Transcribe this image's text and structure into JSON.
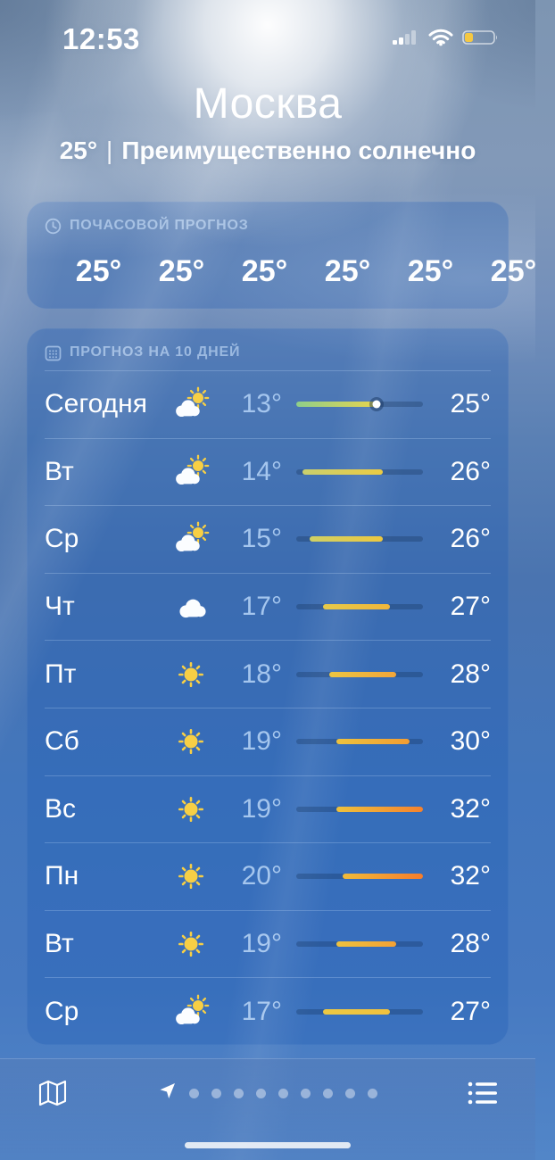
{
  "status_bar": {
    "time": "12:53",
    "signal_bars_total": 4,
    "signal_bars_active": 2,
    "battery_percent": 30,
    "battery_color": "#f5c842"
  },
  "header": {
    "city": "Москва",
    "current_temp": "25°",
    "separator": "|",
    "condition": "Преимущественно солнечно"
  },
  "hourly_card": {
    "icon": "clock-icon",
    "title": "ПОЧАСОВОЙ ПРОГНОЗ",
    "temps": [
      "25°",
      "25°",
      "25°",
      "25°",
      "25°",
      "25°"
    ]
  },
  "daily_card": {
    "icon": "calendar-icon",
    "title": "ПРОГНОЗ НА 10 ДНЕЙ",
    "scale": {
      "min": 13,
      "max": 32
    },
    "days": [
      {
        "label": "Сегодня",
        "icon": "partly-cloudy-icon",
        "low": 13,
        "high": 25,
        "low_label": "13°",
        "high_label": "25°",
        "bar": [
          "#8fcf8a",
          "#e6d44f"
        ],
        "current_temp": 25
      },
      {
        "label": "Вт",
        "icon": "partly-cloudy-icon",
        "low": 14,
        "high": 26,
        "low_label": "14°",
        "high_label": "26°",
        "bar": [
          "#c9cf6e",
          "#eccb43"
        ]
      },
      {
        "label": "Ср",
        "icon": "partly-cloudy-icon",
        "low": 15,
        "high": 26,
        "low_label": "15°",
        "high_label": "26°",
        "bar": [
          "#cfd065",
          "#edc840"
        ]
      },
      {
        "label": "Чт",
        "icon": "cloud-icon",
        "low": 17,
        "high": 27,
        "low_label": "17°",
        "high_label": "27°",
        "bar": [
          "#e6ca4a",
          "#f0b63a"
        ]
      },
      {
        "label": "Пт",
        "icon": "sun-icon",
        "low": 18,
        "high": 28,
        "low_label": "18°",
        "high_label": "28°",
        "bar": [
          "#ecc542",
          "#f2a63a"
        ]
      },
      {
        "label": "Сб",
        "icon": "sun-icon",
        "low": 19,
        "high": 30,
        "low_label": "19°",
        "high_label": "30°",
        "bar": [
          "#edc23e",
          "#f29d33"
        ]
      },
      {
        "label": "Вс",
        "icon": "sun-icon",
        "low": 19,
        "high": 32,
        "low_label": "19°",
        "high_label": "32°",
        "bar": [
          "#eec13c",
          "#f5822e"
        ]
      },
      {
        "label": "Пн",
        "icon": "sun-icon",
        "low": 20,
        "high": 32,
        "low_label": "20°",
        "high_label": "32°",
        "bar": [
          "#f0bb3a",
          "#f57d2c"
        ]
      },
      {
        "label": "Вт",
        "icon": "sun-icon",
        "low": 19,
        "high": 28,
        "low_label": "19°",
        "high_label": "28°",
        "bar": [
          "#eec23e",
          "#f2a135"
        ]
      },
      {
        "label": "Ср",
        "icon": "partly-cloudy-icon",
        "low": 17,
        "high": 27,
        "low_label": "17°",
        "high_label": "27°",
        "bar": [
          "#ecc843",
          "#f0c13d"
        ]
      }
    ]
  },
  "toolbar": {
    "left_icon": "map-icon",
    "right_icon": "list-icon",
    "active_page_icon": "location-arrow-icon",
    "pages_total": 10,
    "active_page_index": 0
  }
}
